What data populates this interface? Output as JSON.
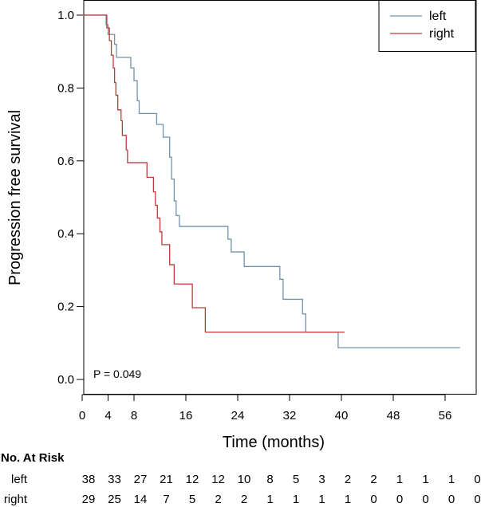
{
  "chart_data": {
    "type": "line",
    "subtype": "kaplan-meier step",
    "xlabel": "Time (months)",
    "ylabel": "Progression free survival",
    "xlim": [
      0,
      60
    ],
    "ylim": [
      0,
      1
    ],
    "xticks": [
      0,
      4,
      8,
      16,
      24,
      32,
      40,
      48,
      56
    ],
    "yticks": [
      0.0,
      0.2,
      0.4,
      0.6,
      0.8,
      1.0
    ],
    "ytick_labels": [
      "0.0",
      "0.2",
      "0.4",
      "0.6",
      "0.8",
      "1.0"
    ],
    "grid": false,
    "legend_position": "top-right",
    "annotation": "P = 0.049",
    "series": [
      {
        "name": "left",
        "color": "#6f93ad",
        "steps": [
          [
            0,
            1.0
          ],
          [
            3.7,
            0.974
          ],
          [
            4.0,
            0.947
          ],
          [
            5.0,
            0.92
          ],
          [
            5.3,
            0.884
          ],
          [
            7.5,
            0.855
          ],
          [
            8.0,
            0.82
          ],
          [
            8.5,
            0.765
          ],
          [
            8.8,
            0.73
          ],
          [
            11.5,
            0.7
          ],
          [
            12.5,
            0.665
          ],
          [
            13.5,
            0.61
          ],
          [
            13.8,
            0.55
          ],
          [
            14.2,
            0.49
          ],
          [
            14.5,
            0.45
          ],
          [
            15.0,
            0.42
          ],
          [
            22.5,
            0.385
          ],
          [
            23.0,
            0.35
          ],
          [
            25.0,
            0.31
          ],
          [
            30.5,
            0.275
          ],
          [
            31.0,
            0.22
          ],
          [
            34.0,
            0.18
          ],
          [
            34.5,
            0.13
          ],
          [
            39.5,
            0.087
          ],
          [
            58.3,
            0.087
          ]
        ]
      },
      {
        "name": "right",
        "color": "#c0393b",
        "steps": [
          [
            0,
            1.0
          ],
          [
            3.8,
            0.965
          ],
          [
            4.2,
            0.93
          ],
          [
            4.5,
            0.89
          ],
          [
            4.8,
            0.855
          ],
          [
            5.0,
            0.815
          ],
          [
            5.2,
            0.78
          ],
          [
            5.5,
            0.74
          ],
          [
            6.0,
            0.71
          ],
          [
            6.2,
            0.67
          ],
          [
            6.8,
            0.63
          ],
          [
            7.0,
            0.595
          ],
          [
            10.0,
            0.555
          ],
          [
            11.0,
            0.515
          ],
          [
            11.3,
            0.478
          ],
          [
            11.6,
            0.443
          ],
          [
            12.0,
            0.405
          ],
          [
            12.3,
            0.37
          ],
          [
            13.5,
            0.315
          ],
          [
            14.2,
            0.262
          ],
          [
            17.0,
            0.197
          ],
          [
            19.0,
            0.13
          ],
          [
            40.5,
            0.13
          ]
        ]
      }
    ]
  },
  "risk_table": {
    "title": "No. At Risk",
    "times": [
      0,
      4,
      8,
      12,
      16,
      20,
      24,
      28,
      32,
      36,
      40,
      44,
      48,
      52,
      56,
      60
    ],
    "rows": [
      {
        "label": "left",
        "counts": [
          "38",
          "33",
          "27",
          "21",
          "12",
          "12",
          "10",
          "8",
          "5",
          "3",
          "2",
          "2",
          "1",
          "1",
          "1",
          "0"
        ]
      },
      {
        "label": "right",
        "counts": [
          "29",
          "25",
          "14",
          "7",
          "5",
          "2",
          "2",
          "1",
          "1",
          "1",
          "1",
          "0",
          "0",
          "0",
          "0",
          "0"
        ]
      }
    ]
  }
}
